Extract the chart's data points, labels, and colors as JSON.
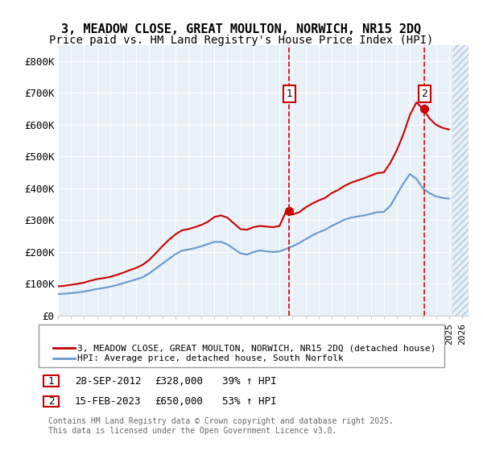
{
  "title_line1": "3, MEADOW CLOSE, GREAT MOULTON, NORWICH, NR15 2DQ",
  "title_line2": "Price paid vs. HM Land Registry's House Price Index (HPI)",
  "title_fontsize": 11,
  "subtitle_fontsize": 10,
  "bg_color": "#e8f0f8",
  "plot_bg_color": "#e8f0f8",
  "hatch_color": "#c8d8e8",
  "red_color": "#cc0000",
  "blue_color": "#6699cc",
  "ylim": [
    0,
    850000
  ],
  "yticks": [
    0,
    100000,
    200000,
    300000,
    400000,
    500000,
    600000,
    700000,
    800000
  ],
  "ytick_labels": [
    "£0",
    "£100K",
    "£200K",
    "£300K",
    "£400K",
    "£500K",
    "£600K",
    "£700K",
    "£800K"
  ],
  "xlim_start": 1995.0,
  "xlim_end": 2026.5,
  "sale1_x": 2012.74,
  "sale1_y": 328000,
  "sale1_label": "1",
  "sale1_date": "28-SEP-2012",
  "sale1_price": "£328,000",
  "sale1_hpi": "39% ↑ HPI",
  "sale2_x": 2023.12,
  "sale2_y": 650000,
  "sale2_label": "2",
  "sale2_date": "15-FEB-2023",
  "sale2_price": "£650,000",
  "sale2_hpi": "53% ↑ HPI",
  "legend_red_label": "3, MEADOW CLOSE, GREAT MOULTON, NORWICH, NR15 2DQ (detached house)",
  "legend_blue_label": "HPI: Average price, detached house, South Norfolk",
  "footer_text": "Contains HM Land Registry data © Crown copyright and database right 2025.\nThis data is licensed under the Open Government Licence v3.0.",
  "red_x": [
    1995.0,
    1995.5,
    1996.0,
    1996.5,
    1997.0,
    1997.5,
    1998.0,
    1998.5,
    1999.0,
    1999.5,
    2000.0,
    2000.5,
    2001.0,
    2001.5,
    2002.0,
    2002.5,
    2003.0,
    2003.5,
    2004.0,
    2004.5,
    2005.0,
    2005.5,
    2006.0,
    2006.5,
    2007.0,
    2007.5,
    2008.0,
    2008.5,
    2009.0,
    2009.5,
    2010.0,
    2010.5,
    2011.0,
    2011.5,
    2012.0,
    2012.5,
    2013.0,
    2013.5,
    2014.0,
    2014.5,
    2015.0,
    2015.5,
    2016.0,
    2016.5,
    2017.0,
    2017.5,
    2018.0,
    2018.5,
    2019.0,
    2019.5,
    2020.0,
    2020.5,
    2021.0,
    2021.5,
    2022.0,
    2022.5,
    2023.0,
    2023.5,
    2024.0,
    2024.5,
    2025.0
  ],
  "red_y": [
    92000,
    94000,
    97000,
    100000,
    104000,
    110000,
    115000,
    118000,
    122000,
    128000,
    135000,
    143000,
    150000,
    160000,
    175000,
    196000,
    218000,
    238000,
    255000,
    268000,
    272000,
    278000,
    285000,
    295000,
    310000,
    315000,
    308000,
    290000,
    272000,
    270000,
    278000,
    282000,
    280000,
    278000,
    282000,
    328000,
    318000,
    325000,
    340000,
    352000,
    362000,
    370000,
    385000,
    395000,
    408000,
    418000,
    425000,
    432000,
    440000,
    448000,
    450000,
    480000,
    520000,
    570000,
    630000,
    670000,
    650000,
    620000,
    600000,
    590000,
    585000
  ],
  "blue_x": [
    1995.0,
    1995.5,
    1996.0,
    1996.5,
    1997.0,
    1997.5,
    1998.0,
    1998.5,
    1999.0,
    1999.5,
    2000.0,
    2000.5,
    2001.0,
    2001.5,
    2002.0,
    2002.5,
    2003.0,
    2003.5,
    2004.0,
    2004.5,
    2005.0,
    2005.5,
    2006.0,
    2006.5,
    2007.0,
    2007.5,
    2008.0,
    2008.5,
    2009.0,
    2009.5,
    2010.0,
    2010.5,
    2011.0,
    2011.5,
    2012.0,
    2012.5,
    2013.0,
    2013.5,
    2014.0,
    2014.5,
    2015.0,
    2015.5,
    2016.0,
    2016.5,
    2017.0,
    2017.5,
    2018.0,
    2018.5,
    2019.0,
    2019.5,
    2020.0,
    2020.5,
    2021.0,
    2021.5,
    2022.0,
    2022.5,
    2023.0,
    2023.5,
    2024.0,
    2024.5,
    2025.0
  ],
  "blue_y": [
    68000,
    69000,
    71000,
    73000,
    76000,
    80000,
    84000,
    87000,
    91000,
    96000,
    102000,
    108000,
    114000,
    121000,
    133000,
    148000,
    163000,
    178000,
    193000,
    204000,
    208000,
    212000,
    218000,
    225000,
    232000,
    232000,
    224000,
    210000,
    196000,
    192000,
    200000,
    205000,
    202000,
    200000,
    202000,
    210000,
    218000,
    228000,
    240000,
    252000,
    262000,
    270000,
    282000,
    292000,
    302000,
    308000,
    312000,
    315000,
    320000,
    325000,
    326000,
    345000,
    380000,
    415000,
    445000,
    430000,
    400000,
    385000,
    375000,
    370000,
    368000
  ]
}
